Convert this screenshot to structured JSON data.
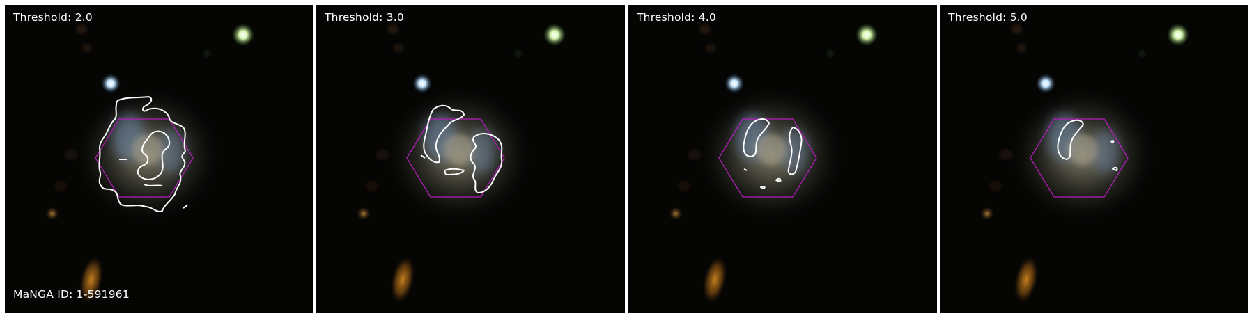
{
  "panels": [
    {
      "threshold_label": "Threshold: 2.0"
    },
    {
      "threshold_label": "Threshold: 3.0"
    },
    {
      "threshold_label": "Threshold: 4.0"
    },
    {
      "threshold_label": "Threshold: 5.0"
    }
  ],
  "manga_id_label": "MaNGA ID: 1-591961",
  "colors": {
    "contour": "#ffffff",
    "hexagon": "#b21fb8",
    "background": "#050504",
    "label_text": "#ffffff"
  }
}
